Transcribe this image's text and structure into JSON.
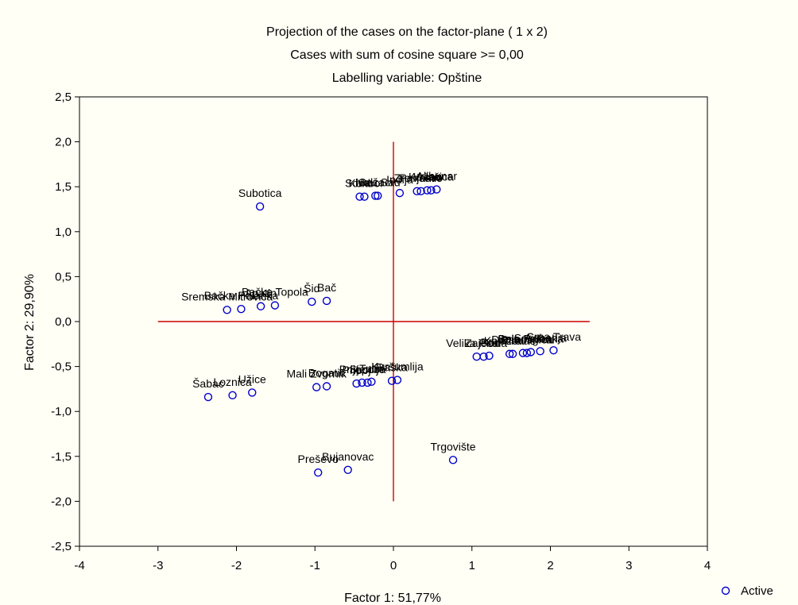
{
  "chart_data": {
    "type": "scatter",
    "title": "Projection of the cases on the factor-plane (  1 x   2)",
    "subtitle": "Cases with sum of cosine square >=  0,00",
    "subtitle2": "Labelling variable: Opštine",
    "xlabel": "Factor 1: 51,77%",
    "ylabel": "Factor 2: 29,90%",
    "xlim": [
      -4,
      4
    ],
    "ylim": [
      -2.5,
      2.5
    ],
    "xticks": [
      "-4",
      "-3",
      "-2",
      "-1",
      "0",
      "1",
      "2",
      "3",
      "4"
    ],
    "yticks": [
      "2,5",
      "2,0",
      "1,5",
      "1,0",
      "0,5",
      "0,0",
      "-0,5",
      "-1,0",
      "-1,5",
      "-2,0",
      "-2,5"
    ],
    "grid": false,
    "legend": {
      "position": "bottom-right",
      "entries": [
        "Active"
      ]
    },
    "colors": {
      "points": "#0000cc",
      "reference_lines": "#cc0000",
      "background": "#fffff6"
    },
    "reference_lines": {
      "x": [
        -3,
        2.5,
        0
      ],
      "y": [
        0,
        1.0,
        -2.0
      ]
    },
    "series": [
      {
        "name": "Active",
        "points": [
          {
            "x": -1.7,
            "y": 1.28,
            "label": "Subotica"
          },
          {
            "x": -0.43,
            "y": 1.39,
            "label": "Kula"
          },
          {
            "x": -0.37,
            "y": 1.39,
            "label": "Sombor"
          },
          {
            "x": -0.23,
            "y": 1.4,
            "label": "Odžaci"
          },
          {
            "x": -0.2,
            "y": 1.4,
            "label": "Novi Sad"
          },
          {
            "x": 0.08,
            "y": 1.43,
            "label": "Inđija"
          },
          {
            "x": 0.3,
            "y": 1.45,
            "label": "Zrenjanin"
          },
          {
            "x": 0.35,
            "y": 1.45,
            "label": "Pančevo"
          },
          {
            "x": 0.43,
            "y": 1.46,
            "label": "Vršac"
          },
          {
            "x": 0.48,
            "y": 1.46,
            "label": "Kovačica"
          },
          {
            "x": 0.55,
            "y": 1.47,
            "label": "Alibunar"
          },
          {
            "x": -2.12,
            "y": 0.13,
            "label": "Sremska Mitrovica"
          },
          {
            "x": -1.94,
            "y": 0.14,
            "label": "Bačka Palanka"
          },
          {
            "x": -1.69,
            "y": 0.17,
            "label": "Apatin"
          },
          {
            "x": -1.51,
            "y": 0.18,
            "label": "Bačka Topola"
          },
          {
            "x": -1.04,
            "y": 0.22,
            "label": "Šid"
          },
          {
            "x": -0.85,
            "y": 0.23,
            "label": "Bač"
          },
          {
            "x": 1.06,
            "y": -0.39,
            "label": "Velika Plana"
          },
          {
            "x": 1.15,
            "y": -0.39,
            "label": "Zaječar"
          },
          {
            "x": 1.22,
            "y": -0.38,
            "label": "Bor"
          },
          {
            "x": 1.48,
            "y": -0.36,
            "label": "Knjaževac"
          },
          {
            "x": 1.52,
            "y": -0.36,
            "label": "Pirot"
          },
          {
            "x": 1.65,
            "y": -0.35,
            "label": "Dimitrovgrad"
          },
          {
            "x": 1.7,
            "y": -0.35,
            "label": "Babušnica"
          },
          {
            "x": 1.75,
            "y": -0.34,
            "label": "Bela Palanka"
          },
          {
            "x": 1.87,
            "y": -0.33,
            "label": "Sokobanja"
          },
          {
            "x": 2.04,
            "y": -0.32,
            "label": "Crna Trava"
          },
          {
            "x": -0.98,
            "y": -0.73,
            "label": "Mali Zvornik"
          },
          {
            "x": -0.85,
            "y": -0.72,
            "label": "Bogatić"
          },
          {
            "x": -0.47,
            "y": -0.69,
            "label": "Priboj"
          },
          {
            "x": -0.4,
            "y": -0.68,
            "label": "Prijepolje"
          },
          {
            "x": -0.33,
            "y": -0.68,
            "label": "Sjenica"
          },
          {
            "x": -0.28,
            "y": -0.67,
            "label": "Tutin"
          },
          {
            "x": -0.02,
            "y": -0.66,
            "label": "Raška"
          },
          {
            "x": 0.05,
            "y": -0.65,
            "label": "Kuršumlija"
          },
          {
            "x": -2.36,
            "y": -0.84,
            "label": "Šabac"
          },
          {
            "x": -2.05,
            "y": -0.82,
            "label": "Loznica"
          },
          {
            "x": -1.8,
            "y": -0.79,
            "label": "Užice"
          },
          {
            "x": -0.96,
            "y": -1.68,
            "label": "Preševo"
          },
          {
            "x": -0.58,
            "y": -1.65,
            "label": "Bujanovac"
          },
          {
            "x": 0.76,
            "y": -1.54,
            "label": "Trgovište"
          }
        ]
      }
    ]
  }
}
